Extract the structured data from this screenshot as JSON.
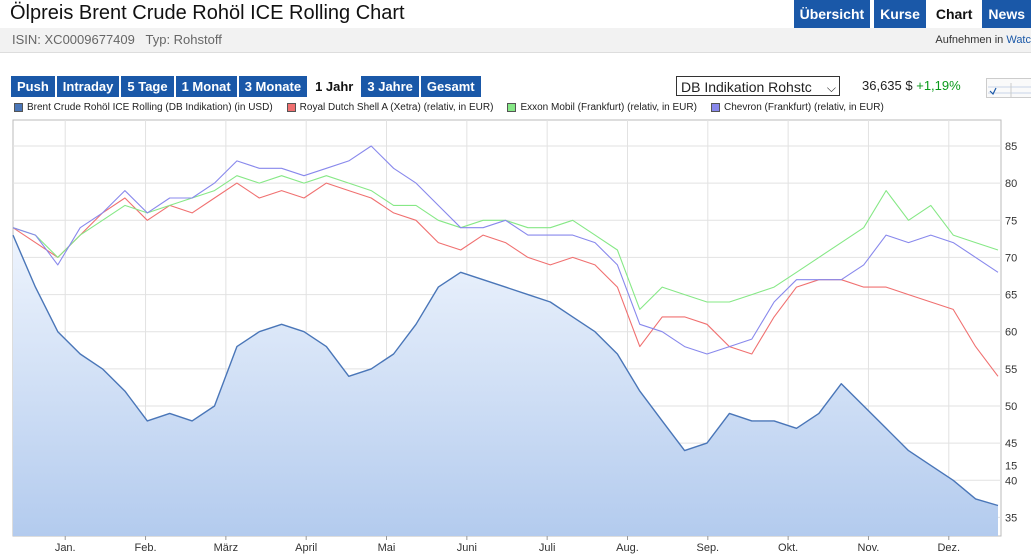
{
  "header": {
    "title": "Ölpreis Brent Crude Rohöl ICE Rolling Chart",
    "nav": [
      {
        "label": "Übersicht",
        "active": false
      },
      {
        "label": "Kurse",
        "active": false
      },
      {
        "label": "Chart",
        "active": true
      },
      {
        "label": "News",
        "active": false
      }
    ]
  },
  "subbar": {
    "isin": "ISIN: XC0009677409",
    "typ": "Typ: Rohstoff",
    "watch_prefix": "Aufnehmen in",
    "watch_link": "Watc"
  },
  "periods": [
    {
      "label": "Push",
      "active": false
    },
    {
      "label": "Intraday",
      "active": false
    },
    {
      "label": "5 Tage",
      "active": false
    },
    {
      "label": "1 Monat",
      "active": false
    },
    {
      "label": "3 Monate",
      "active": false
    },
    {
      "label": "1 Jahr",
      "active": true
    },
    {
      "label": "3 Jahre",
      "active": false
    },
    {
      "label": "Gesamt",
      "active": false
    }
  ],
  "exchange_select": {
    "value": "DB Indikation Rohstc"
  },
  "quote": {
    "price": "36,635 $",
    "change": "+1,19%"
  },
  "colors": {
    "nav": "#1a58a8",
    "brent_line": "#4a76b8",
    "shell": "#f07070",
    "exxon": "#86e886",
    "chevron": "#8888ec",
    "change_positive": "#0a9a1a"
  },
  "chart_data": {
    "type": "line",
    "months": [
      "Jan.",
      "Feb.",
      "März",
      "April",
      "Mai",
      "Juni",
      "Juli",
      "Aug.",
      "Sep.",
      "Okt.",
      "Nov.",
      "Dez."
    ],
    "y_ticks": [
      35,
      40,
      45,
      50,
      55,
      60,
      65,
      70,
      75,
      80,
      85
    ],
    "right_axis_extra_label": "15",
    "ylim": [
      32.5,
      88.5
    ],
    "grid": true,
    "legend_position": "top",
    "series": [
      {
        "name": "Brent Crude Rohöl ICE Rolling (DB Indikation) (in USD)",
        "color": "#4a76b8",
        "area": true,
        "values": [
          73,
          66,
          60,
          57,
          55,
          52,
          48,
          49,
          48,
          50,
          58,
          60,
          61,
          60,
          58,
          54,
          55,
          57,
          61,
          66,
          68,
          67,
          66,
          65,
          64,
          62,
          60,
          57,
          52,
          48,
          44,
          45,
          49,
          48,
          48,
          47,
          49,
          53,
          50,
          47,
          44,
          42,
          40,
          37.5,
          36.6
        ]
      },
      {
        "name": "Royal Dutch Shell A (Xetra) (relativ, in EUR)",
        "color": "#f07070",
        "values": [
          74,
          72,
          70,
          73,
          76,
          78,
          75,
          77,
          76,
          78,
          80,
          78,
          79,
          78,
          80,
          79,
          78,
          76,
          75,
          72,
          71,
          73,
          72,
          70,
          69,
          70,
          69,
          66,
          58,
          62,
          62,
          61,
          58,
          57,
          62,
          66,
          67,
          67,
          66,
          66,
          65,
          64,
          63,
          58,
          54
        ]
      },
      {
        "name": "Exxon Mobil (Frankfurt) (relativ, in EUR)",
        "color": "#86e886",
        "values": [
          74,
          73,
          70,
          73,
          75,
          77,
          76,
          77,
          78,
          79,
          81,
          80,
          81,
          80,
          81,
          80,
          79,
          77,
          77,
          75,
          74,
          75,
          75,
          74,
          74,
          75,
          73,
          71,
          63,
          66,
          65,
          64,
          64,
          65,
          66,
          68,
          70,
          72,
          74,
          79,
          75,
          77,
          73,
          72,
          71
        ]
      },
      {
        "name": "Chevron (Frankfurt) (relativ, in EUR)",
        "color": "#8888ec",
        "values": [
          74,
          73,
          69,
          74,
          76,
          79,
          76,
          78,
          78,
          80,
          83,
          82,
          82,
          81,
          82,
          83,
          85,
          82,
          80,
          77,
          74,
          74,
          75,
          73,
          73,
          73,
          72,
          69,
          61,
          60,
          58,
          57,
          58,
          59,
          64,
          67,
          67,
          67,
          69,
          73,
          72,
          73,
          72,
          70,
          68
        ]
      }
    ]
  }
}
